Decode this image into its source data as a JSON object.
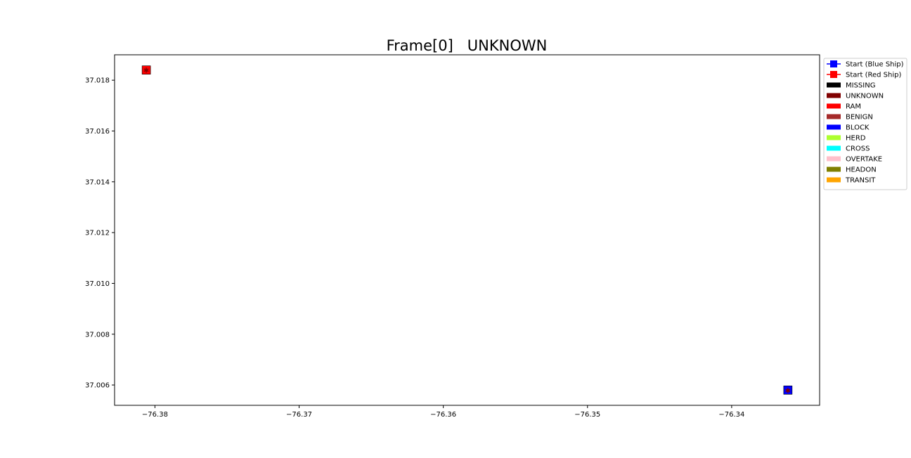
{
  "chart_data": {
    "type": "scatter",
    "title": "Frame[0]   UNKNOWN",
    "xlabel": "",
    "ylabel": "",
    "xlim": [
      -76.3828,
      -76.3339
    ],
    "ylim": [
      37.0052,
      37.019
    ],
    "x_ticks": [
      {
        "value": -76.38,
        "label": "−76.38"
      },
      {
        "value": -76.37,
        "label": "−76.37"
      },
      {
        "value": -76.36,
        "label": "−76.36"
      },
      {
        "value": -76.35,
        "label": "−76.35"
      },
      {
        "value": -76.34,
        "label": "−76.34"
      }
    ],
    "y_ticks": [
      {
        "value": 37.006,
        "label": "37.006"
      },
      {
        "value": 37.008,
        "label": "37.008"
      },
      {
        "value": 37.01,
        "label": "37.010"
      },
      {
        "value": 37.012,
        "label": "37.012"
      },
      {
        "value": 37.014,
        "label": "37.014"
      },
      {
        "value": 37.016,
        "label": "37.016"
      },
      {
        "value": 37.018,
        "label": "37.018"
      }
    ],
    "grid": false,
    "legend_position": "outside-right-top",
    "series": [
      {
        "name": "Start (Blue Ship)",
        "color": "#0000ff",
        "marker": "square",
        "x": [
          -76.3361
        ],
        "y": [
          37.0058
        ]
      },
      {
        "name": "Start (Red Ship)",
        "color": "#ff0000",
        "marker": "square",
        "x": [
          -76.3806
        ],
        "y": [
          37.0184
        ]
      }
    ],
    "point_marker_color": "#800000",
    "legend_patches": [
      {
        "label": "MISSING",
        "color": "#000000"
      },
      {
        "label": "UNKNOWN",
        "color": "#800000"
      },
      {
        "label": "RAM",
        "color": "#ff0000"
      },
      {
        "label": "BENIGN",
        "color": "#a52a2a"
      },
      {
        "label": "BLOCK",
        "color": "#0000ff"
      },
      {
        "label": "HERD",
        "color": "#adff2f"
      },
      {
        "label": "CROSS",
        "color": "#00ffff"
      },
      {
        "label": "OVERTAKE",
        "color": "#ffc0cb"
      },
      {
        "label": "HEADON",
        "color": "#808000"
      },
      {
        "label": "TRANSIT",
        "color": "#ffa500"
      }
    ]
  }
}
